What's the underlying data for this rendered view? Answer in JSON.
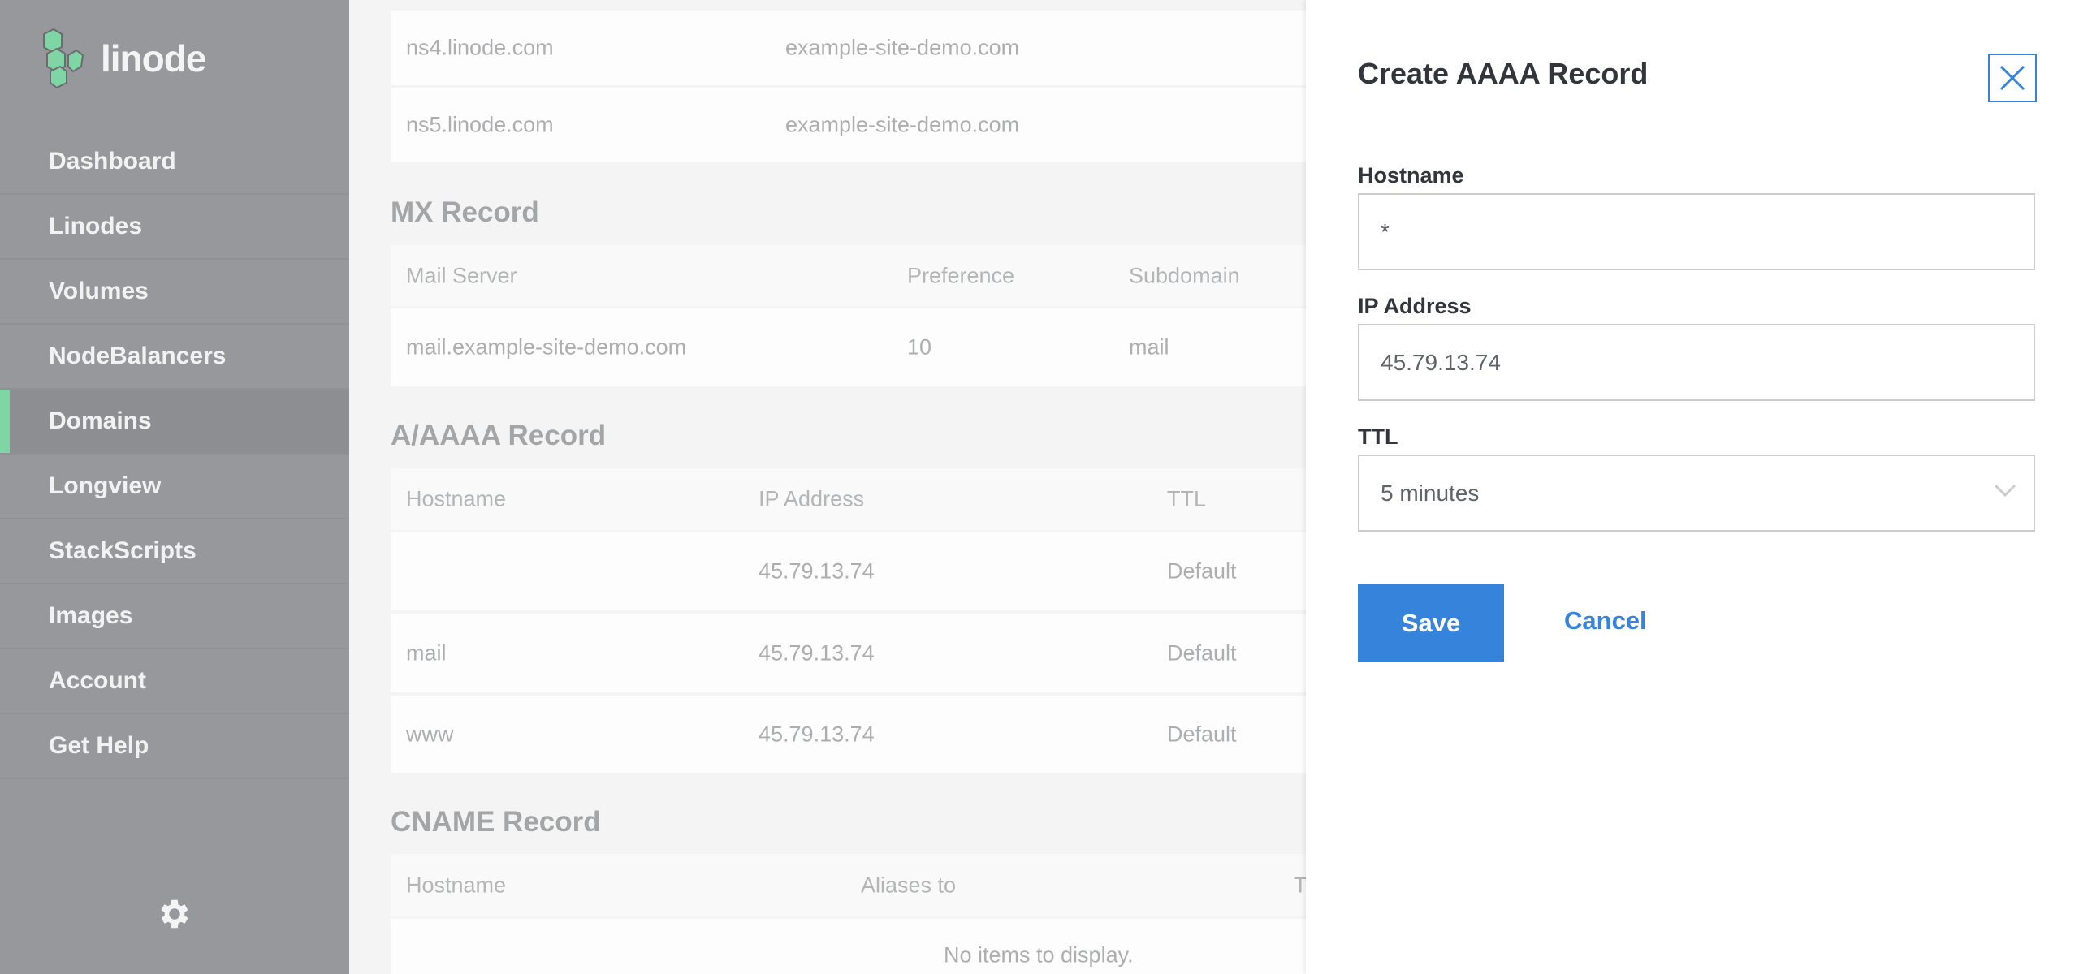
{
  "brand": {
    "name": "linode",
    "accent": "#7fd6a4"
  },
  "sidebar": {
    "items": [
      {
        "label": "Dashboard"
      },
      {
        "label": "Linodes"
      },
      {
        "label": "Volumes"
      },
      {
        "label": "NodeBalancers"
      },
      {
        "label": "Domains",
        "active": true
      },
      {
        "label": "Longview"
      },
      {
        "label": "StackScripts"
      },
      {
        "label": "Images"
      },
      {
        "label": "Account"
      },
      {
        "label": "Get Help"
      }
    ],
    "settings_icon": "gear-icon"
  },
  "ns_rows": [
    [
      "ns4.linode.com",
      "example-site-demo.com"
    ],
    [
      "ns5.linode.com",
      "example-site-demo.com"
    ]
  ],
  "mx": {
    "title": "MX Record",
    "headers": [
      "Mail Server",
      "Preference",
      "Subdomain"
    ],
    "rows": [
      [
        "mail.example-site-demo.com",
        "10",
        "mail"
      ]
    ]
  },
  "a": {
    "title": "A/AAAA Record",
    "headers": [
      "Hostname",
      "IP Address",
      "TTL"
    ],
    "rows": [
      [
        "",
        "45.79.13.74",
        "Default"
      ],
      [
        "mail",
        "45.79.13.74",
        "Default"
      ],
      [
        "www",
        "45.79.13.74",
        "Default"
      ]
    ]
  },
  "cname": {
    "title": "CNAME Record",
    "headers": [
      "Hostname",
      "Aliases to",
      "T"
    ],
    "empty": "No items to display."
  },
  "drawer": {
    "title": "Create AAAA Record",
    "hostname": {
      "label": "Hostname",
      "value": "*"
    },
    "ip": {
      "label": "IP Address",
      "value": "45.79.13.74"
    },
    "ttl": {
      "label": "TTL",
      "value": "5 minutes"
    },
    "save": "Save",
    "cancel": "Cancel",
    "primary": "#3683dc"
  }
}
